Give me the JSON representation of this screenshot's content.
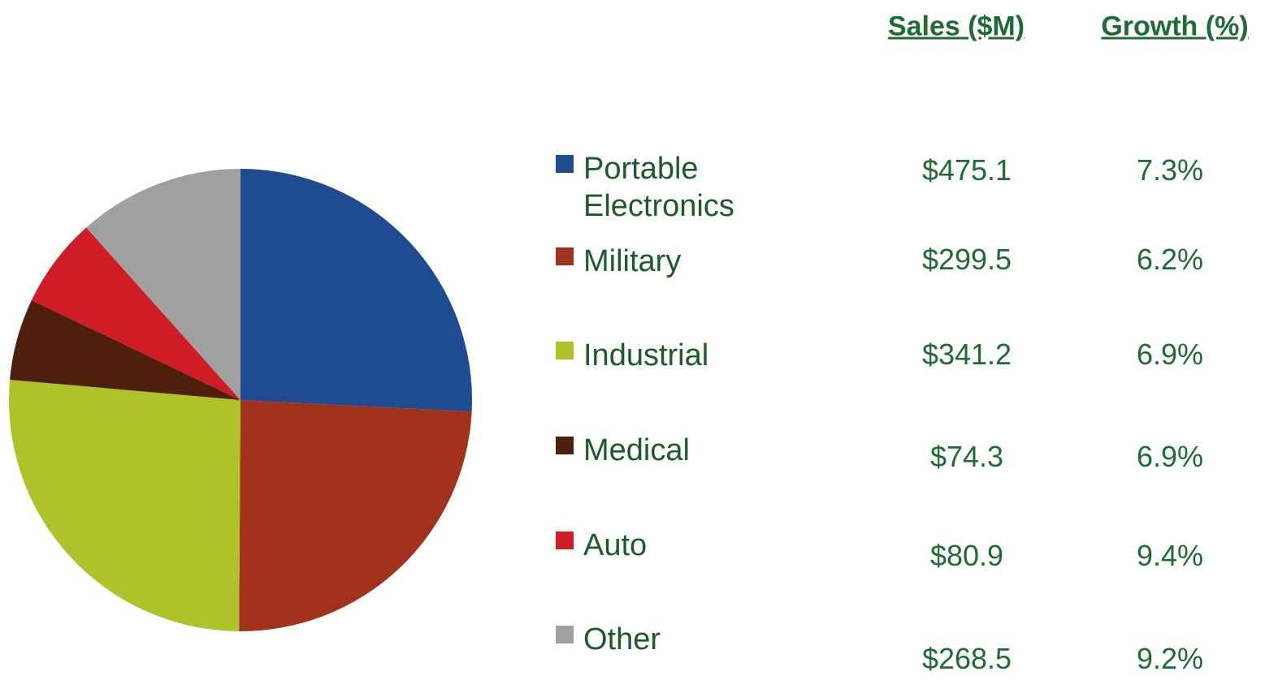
{
  "chart_data": {
    "type": "pie",
    "categories": [
      "Portable Electronics",
      "Military",
      "Industrial",
      "Medical",
      "Auto",
      "Other"
    ],
    "values": [
      25.8,
      24.3,
      26.3,
      5.7,
      6.3,
      11.6
    ],
    "colors": [
      "#1f4b93",
      "#a3321c",
      "#aec229",
      "#4f1f0e",
      "#d01c24",
      "#a0a0a0"
    ]
  },
  "table": {
    "header": [
      "Sales ($M)",
      "Growth (%)"
    ],
    "rows": [
      [
        "$475.1",
        "7.3%"
      ],
      [
        "$299.5",
        "6.2%"
      ],
      [
        "$341.2",
        "6.9%"
      ],
      [
        "$74.3",
        "6.9%"
      ],
      [
        "$80.9",
        "9.4%"
      ],
      [
        "$268.5",
        "9.2%"
      ]
    ]
  }
}
